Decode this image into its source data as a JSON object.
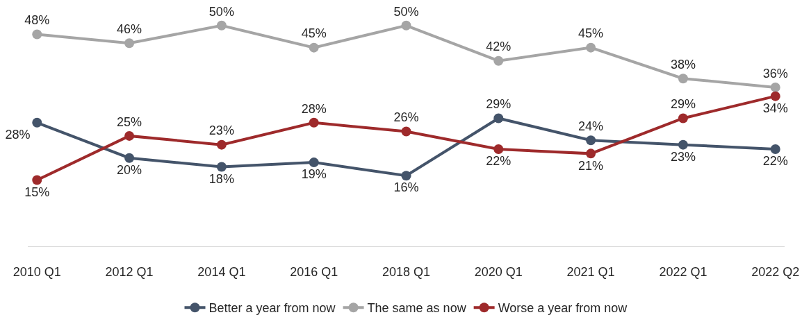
{
  "chart_data": {
    "type": "line",
    "categories": [
      "2010 Q1",
      "2012 Q1",
      "2014 Q1",
      "2016 Q1",
      "2018 Q1",
      "2020 Q1",
      "2021 Q1",
      "2022 Q1",
      "2022 Q2"
    ],
    "series": [
      {
        "name": "Better a year from now",
        "color": "#44546a",
        "values": [
          28,
          20,
          18,
          19,
          16,
          29,
          24,
          23,
          22
        ],
        "value_labels": [
          "28%",
          "20%",
          "18%",
          "19%",
          "16%",
          "29%",
          "24%",
          "23%",
          "22%"
        ]
      },
      {
        "name": "The same as now",
        "color": "#a5a5a5",
        "values": [
          48,
          46,
          50,
          45,
          50,
          42,
          45,
          38,
          36
        ],
        "value_labels": [
          "48%",
          "46%",
          "50%",
          "45%",
          "50%",
          "42%",
          "45%",
          "38%",
          "36%"
        ]
      },
      {
        "name": "Worse a year from now",
        "color": "#9e2a2b",
        "values": [
          15,
          25,
          23,
          28,
          26,
          22,
          21,
          29,
          34
        ],
        "value_labels": [
          "15%",
          "25%",
          "23%",
          "28%",
          "26%",
          "22%",
          "21%",
          "29%",
          "34%"
        ]
      }
    ],
    "marker": "circle",
    "line_style": "solid",
    "legend": "bottom",
    "tick_labels": "x"
  }
}
